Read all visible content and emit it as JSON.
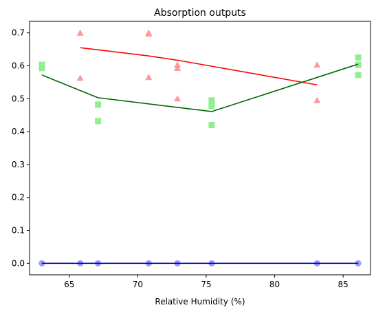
{
  "chart_data": {
    "type": "scatter",
    "title": "Absorption outputs",
    "xlabel": "Relative Humidity (%)",
    "ylabel": "",
    "xlim": [
      62.1,
      87.0
    ],
    "ylim": [
      -0.035,
      0.735
    ],
    "xticks": [
      65,
      70,
      75,
      80,
      85
    ],
    "yticks": [
      0.0,
      0.1,
      0.2,
      0.3,
      0.4,
      0.5,
      0.6,
      0.7
    ],
    "grid": false,
    "series": [
      {
        "color": "#ff9999",
        "line_color": "#ff0000",
        "marker": "triangle",
        "points": [
          {
            "x": 65.8,
            "y": 0.7
          },
          {
            "x": 65.8,
            "y": 0.563
          },
          {
            "x": 70.8,
            "y": 0.7
          },
          {
            "x": 70.8,
            "y": 0.697
          },
          {
            "x": 70.8,
            "y": 0.565
          },
          {
            "x": 72.9,
            "y": 0.603
          },
          {
            "x": 72.9,
            "y": 0.593
          },
          {
            "x": 72.9,
            "y": 0.5
          },
          {
            "x": 83.1,
            "y": 0.603
          },
          {
            "x": 83.1,
            "y": 0.495
          }
        ],
        "trend": {
          "x": [
            65.8,
            70.8,
            72.9,
            83.1
          ],
          "y": [
            0.655,
            0.63,
            0.617,
            0.542
          ]
        }
      },
      {
        "color": "#90ee90",
        "line_color": "#006400",
        "marker": "square",
        "points": [
          {
            "x": 63.0,
            "y": 0.603
          },
          {
            "x": 63.0,
            "y": 0.593
          },
          {
            "x": 67.1,
            "y": 0.482
          },
          {
            "x": 67.1,
            "y": 0.432
          },
          {
            "x": 75.4,
            "y": 0.495
          },
          {
            "x": 75.4,
            "y": 0.485
          },
          {
            "x": 75.4,
            "y": 0.478
          },
          {
            "x": 75.4,
            "y": 0.42
          },
          {
            "x": 86.1,
            "y": 0.625
          },
          {
            "x": 86.1,
            "y": 0.603
          },
          {
            "x": 86.1,
            "y": 0.572
          }
        ],
        "trend": {
          "x": [
            63.0,
            67.1,
            75.4,
            86.1
          ],
          "y": [
            0.572,
            0.503,
            0.461,
            0.605
          ]
        }
      },
      {
        "color": "#9999ff",
        "line_color": "#0000cc",
        "marker": "circle",
        "points": [
          {
            "x": 63.0,
            "y": 0.0
          },
          {
            "x": 65.8,
            "y": 0.0
          },
          {
            "x": 67.1,
            "y": 0.0
          },
          {
            "x": 70.8,
            "y": 0.0
          },
          {
            "x": 72.9,
            "y": 0.0
          },
          {
            "x": 75.4,
            "y": 0.0
          },
          {
            "x": 83.1,
            "y": 0.0
          },
          {
            "x": 86.1,
            "y": 0.0
          }
        ],
        "trend": {
          "x": [
            63.0,
            86.1
          ],
          "y": [
            0.0,
            0.0
          ]
        }
      }
    ]
  }
}
